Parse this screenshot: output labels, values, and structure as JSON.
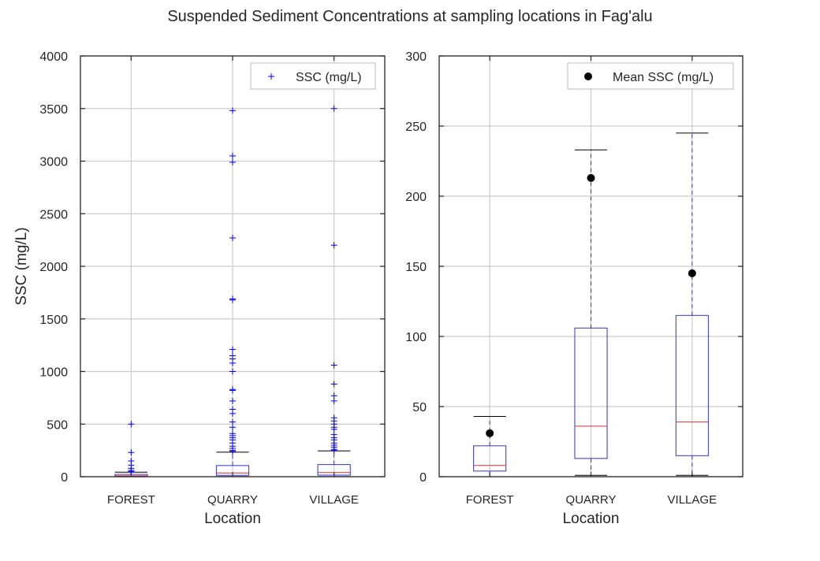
{
  "suptitle": "Suspended Sediment Concentrations at sampling locations in Fag'alu",
  "colors": {
    "box": "#3333cc",
    "median": "#cc3333",
    "flier": "#0000ff",
    "mean_marker": "#000000",
    "grid": "#cccccc",
    "axes": "#262626"
  },
  "chart_data": [
    {
      "type": "box",
      "title": "",
      "xlabel": "Location",
      "ylabel": "SSC (mg/L)",
      "ylim": [
        0,
        4000
      ],
      "yticks": [
        0,
        500,
        1000,
        1500,
        2000,
        2500,
        3000,
        3500,
        4000
      ],
      "grid": true,
      "legend": {
        "location": "upper right",
        "entries": [
          {
            "label": "SSC (mg/L)",
            "marker": "+"
          }
        ]
      },
      "categories": [
        "FOREST",
        "QUARRY",
        "VILLAGE"
      ],
      "boxes": [
        {
          "category": "FOREST",
          "q1": 4,
          "median": 8,
          "q3": 22,
          "whisker_low": 0,
          "whisker_high": 43
        },
        {
          "category": "QUARRY",
          "q1": 13,
          "median": 36,
          "q3": 106,
          "whisker_low": 1,
          "whisker_high": 233
        },
        {
          "category": "VILLAGE",
          "q1": 15,
          "median": 39,
          "q3": 115,
          "whisker_low": 1,
          "whisker_high": 245
        }
      ],
      "fliers": [
        {
          "category": "FOREST",
          "values": [
            500,
            230,
            150,
            110,
            80,
            60,
            50
          ]
        },
        {
          "category": "QUARRY",
          "values": [
            3480,
            3050,
            2990,
            2270,
            1690,
            1680,
            1210,
            1150,
            1120,
            1080,
            1000,
            830,
            820,
            720,
            640,
            600,
            520,
            470,
            410,
            390,
            370,
            350,
            320,
            290,
            270,
            250,
            240
          ]
        },
        {
          "category": "VILLAGE",
          "values": [
            3500,
            2200,
            1060,
            880,
            770,
            720,
            560,
            530,
            500,
            470,
            450,
            400,
            370,
            350,
            320,
            300,
            280,
            260,
            250
          ]
        }
      ]
    },
    {
      "type": "box",
      "title": "",
      "xlabel": "Location",
      "ylabel": "",
      "ylim": [
        0,
        300
      ],
      "yticks": [
        0,
        50,
        100,
        150,
        200,
        250,
        300
      ],
      "grid": true,
      "legend": {
        "location": "upper right",
        "entries": [
          {
            "label": "Mean SSC (mg/L)",
            "marker": "o"
          }
        ]
      },
      "categories": [
        "FOREST",
        "QUARRY",
        "VILLAGE"
      ],
      "boxes": [
        {
          "category": "FOREST",
          "q1": 4,
          "median": 8,
          "q3": 22,
          "whisker_low": 0,
          "whisker_high": 43
        },
        {
          "category": "QUARRY",
          "q1": 13,
          "median": 36,
          "q3": 106,
          "whisker_low": 1,
          "whisker_high": 233
        },
        {
          "category": "VILLAGE",
          "q1": 15,
          "median": 39,
          "q3": 115,
          "whisker_low": 1,
          "whisker_high": 245
        }
      ],
      "means": [
        {
          "category": "FOREST",
          "value": 31
        },
        {
          "category": "QUARRY",
          "value": 213
        },
        {
          "category": "VILLAGE",
          "value": 145
        }
      ]
    }
  ]
}
